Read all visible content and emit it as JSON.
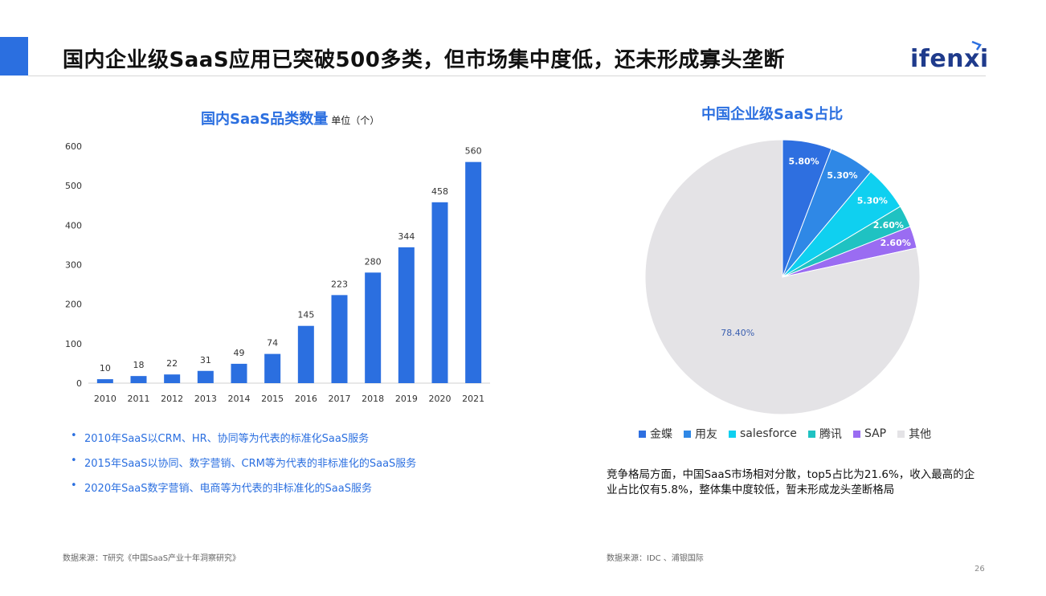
{
  "header": {
    "title": "国内企业级SaaS应用已突破500多类，但市场集中度低，还未形成寡头垄断",
    "logo_text": "ifenxi",
    "accent_color": "#2b6fe0"
  },
  "left_chart": {
    "title": "国内SaaS品类数量",
    "unit": "单位（个）"
  },
  "right_chart": {
    "title": "中国企业级SaaS占比"
  },
  "chart_data": [
    {
      "type": "bar",
      "title": "国内SaaS品类数量",
      "categories": [
        "2010",
        "2011",
        "2012",
        "2013",
        "2014",
        "2015",
        "2016",
        "2017",
        "2018",
        "2019",
        "2020",
        "2021"
      ],
      "values": [
        10,
        18,
        22,
        31,
        49,
        74,
        145,
        223,
        280,
        344,
        458,
        560
      ],
      "ylim": [
        0,
        600
      ],
      "yticks": [
        "0",
        "100",
        "200",
        "300",
        "400",
        "500",
        "600"
      ],
      "ylabel": "",
      "xlabel": "",
      "color": "#2b6fe0",
      "grid": false
    },
    {
      "type": "pie",
      "title": "中国企业级SaaS占比",
      "slices": [
        {
          "label": "金蝶",
          "value": 5.8,
          "display": "5.80%",
          "color": "#2e6fe0"
        },
        {
          "label": "用友",
          "value": 5.3,
          "display": "5.30%",
          "color": "#2f88e6"
        },
        {
          "label": "salesforce",
          "value": 5.3,
          "display": "5.30%",
          "color": "#0fd0f0"
        },
        {
          "label": "腾讯",
          "value": 2.6,
          "display": "2.60%",
          "color": "#1fc2c2"
        },
        {
          "label": "SAP",
          "value": 2.6,
          "display": "2.60%",
          "color": "#9a6cf2"
        },
        {
          "label": "其他",
          "value": 78.4,
          "display": "78.40%",
          "color": "#e4e3e6"
        }
      ],
      "legend_position": "bottom"
    }
  ],
  "bullets": [
    "2010年SaaS以CRM、HR、协同等为代表的标准化SaaS服务",
    "2015年SaaS以协同、数字营销、CRM等为代表的非标准化的SaaS服务",
    "2020年SaaS数字营销、电商等为代表的非标准化的SaaS服务"
  ],
  "summary": "竞争格局方面，中国SaaS市场相对分散，top5占比为21.6%，收入最高的企业占比仅有5.8%，整体集中度较低，暂未形成龙头垄断格局",
  "source_left": "数据来源：T研究《中国SaaS产业十年洞察研究》",
  "source_right": "数据来源：IDC 、浦银国际",
  "page_number": "26"
}
